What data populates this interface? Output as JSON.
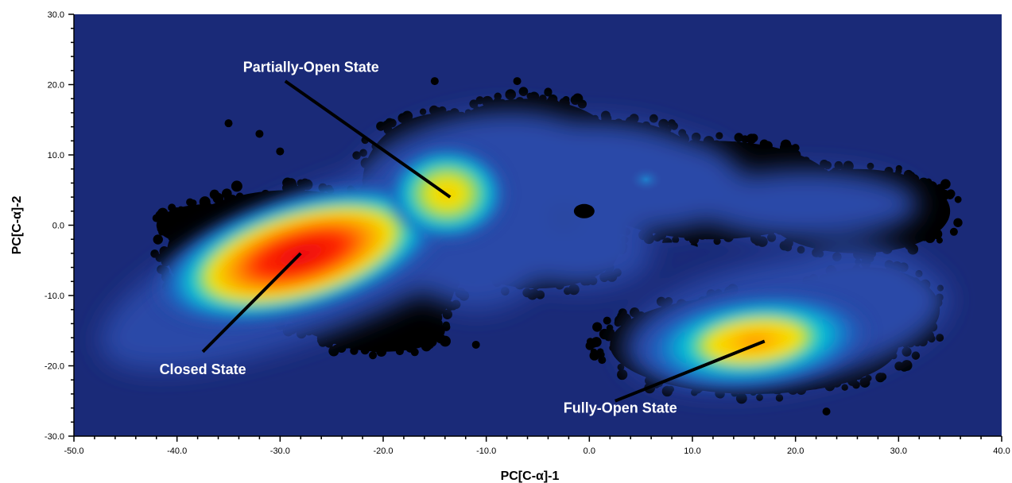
{
  "chart_data": {
    "type": "heatmap",
    "xlabel": "PC[C-α]-1",
    "ylabel": "PC[C-α]-2",
    "xlim": [
      -50,
      40
    ],
    "ylim": [
      -30,
      30
    ],
    "x_ticks": [
      "-50.0",
      "-40.0",
      "-30.0",
      "-20.0",
      "-10.0",
      "0.0",
      "10.0",
      "20.0",
      "30.0",
      "40.0"
    ],
    "y_ticks": [
      "30.0",
      "20.0",
      "10.0",
      "0.0",
      "-10.0",
      "-20.0",
      "-30.0"
    ],
    "grid": false,
    "colors": {
      "background": "#1a2a78",
      "scatter": "#000000",
      "density_scale": [
        "#1f3f9c",
        "#00bcd8",
        "#f2e600",
        "#ff8a00",
        "#e8000e"
      ]
    },
    "annotations": [
      {
        "text": "Partially-Open State",
        "x": -13.5,
        "y": 4
      },
      {
        "text": "Closed State",
        "x": -28,
        "y": -4
      },
      {
        "text": "Fully-Open State",
        "x": 17,
        "y": -16.5
      }
    ],
    "density_peaks": [
      {
        "x": -28,
        "y": -4,
        "level": 1.0
      },
      {
        "x": -13.5,
        "y": 4,
        "level": 0.65
      },
      {
        "x": 16.5,
        "y": -17,
        "level": 0.75
      }
    ]
  }
}
